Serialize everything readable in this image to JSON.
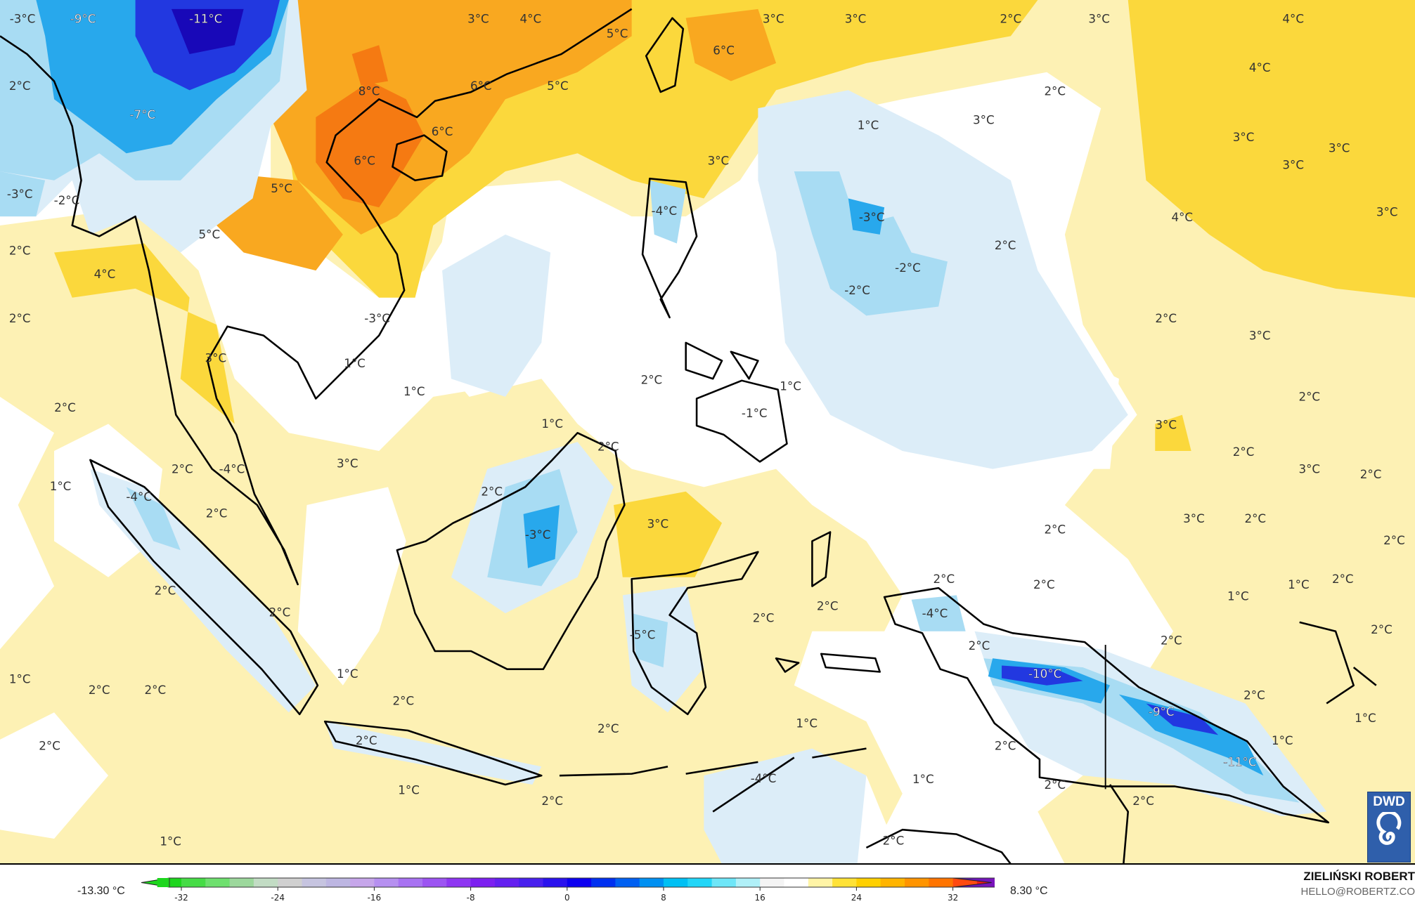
{
  "map": {
    "labels": [
      "-3°C",
      "-9°C",
      "-11°C",
      "3°C",
      "4°C",
      "5°C",
      "3°C",
      "3°C",
      "2°C",
      "3°C",
      "4°C",
      "6°C",
      "4°C",
      "2°C",
      "-7°C",
      "8°C",
      "6°C",
      "5°C",
      "2°C",
      "1°C",
      "3°C",
      "3°C",
      "3°C",
      "3°C",
      "6°C",
      "6°C",
      "3°C",
      "-2°C",
      "-3°C",
      "5°C",
      "-4°C",
      "-3°C",
      "4°C",
      "3°C",
      "2°C",
      "4°C",
      "5°C",
      "2°C",
      "-2°C",
      "-2°C",
      "2°C",
      "-3°C",
      "2°C",
      "3°C",
      "3°C",
      "1°C",
      "1°C",
      "2°C",
      "1°C",
      "-1°C",
      "2°C",
      "2°C",
      "1°C",
      "3°C",
      "2°C",
      "2°C",
      "3°C",
      "2°C",
      "2°C",
      "-4°C",
      "3°C",
      "1°C",
      "-4°C",
      "2°C",
      "2°C",
      "3°C",
      "-3°C",
      "2°C",
      "3°C",
      "2°C",
      "2°C",
      "2°C",
      "2°C",
      "2°C",
      "1°C",
      "1°C",
      "2°C",
      "-4°C",
      "2°C",
      "2°C",
      "2°C",
      "-5°C",
      "2°C",
      "2°C",
      "2°C",
      "-10°C",
      "1°C",
      "1°C",
      "2°C",
      "2°C",
      "2°C",
      "2°C",
      "-9°C",
      "1°C",
      "1°C",
      "2°C",
      "1°C",
      "2°C",
      "2°C",
      "2°C",
      "-11°C",
      "-4°C",
      "1°C",
      "2°C",
      "1°C",
      "2°C",
      "2°C",
      "2°C",
      "1°C"
    ]
  },
  "legend": {
    "min_value": "-13.30 °C",
    "max_value": "8.30 °C",
    "ticks": [
      "-32",
      "-24",
      "-16",
      "-8",
      "0",
      "8",
      "16",
      "24",
      "32"
    ],
    "colors": [
      "#1ed61e",
      "#46dc46",
      "#6ee06e",
      "#9cd89c",
      "#c2dcc4",
      "#d0d0d0",
      "#c6c4e0",
      "#bdb6e2",
      "#c6a6ea",
      "#b690f0",
      "#a872f2",
      "#9c54f2",
      "#8e36f2",
      "#7c20f0",
      "#6420f0",
      "#4820ee",
      "#2a12ee",
      "#0c00f0",
      "#0030f0",
      "#0060f2",
      "#0090f2",
      "#00c0f4",
      "#22d6f8",
      "#6ee6f8",
      "#b0f0f8",
      "#f4f4f4",
      "#ffffff",
      "#fff4a6",
      "#ffe236",
      "#ffd000",
      "#ffb400",
      "#ff9400",
      "#ff7400",
      "#ff4a10",
      "#f01818",
      "#d01010",
      "#a80014",
      "#78102a",
      "#441030",
      "#2c0a2c",
      "#200818",
      "#000000",
      "#302870"
    ],
    "top_gradient": [
      "#5a18b0",
      "#9a10c8",
      "#d800e8",
      "#ff00ff"
    ]
  },
  "credit": {
    "name": "ZIELIŃSKI ROBERT",
    "email": "HELLO@ROBERTZ.CO"
  },
  "logo": {
    "text": "DWD",
    "color": "#2f5fab"
  }
}
